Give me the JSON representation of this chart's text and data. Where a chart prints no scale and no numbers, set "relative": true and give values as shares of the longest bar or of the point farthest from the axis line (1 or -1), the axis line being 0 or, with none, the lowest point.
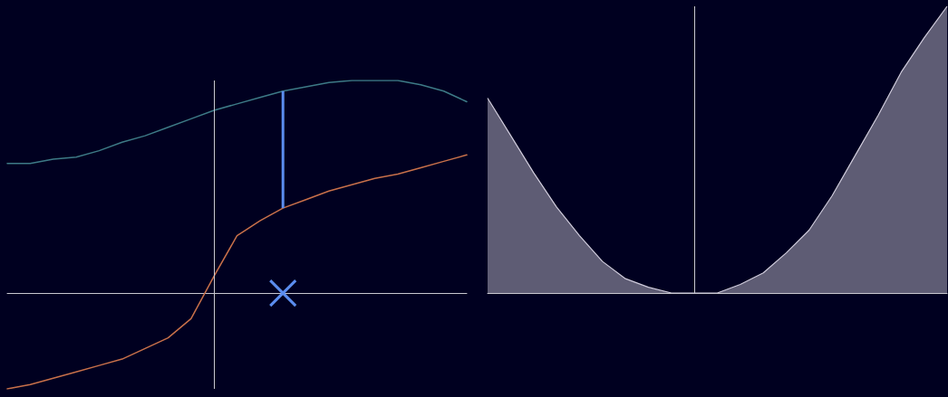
{
  "chart_data": [
    {
      "type": "line",
      "relative": true,
      "grid": false,
      "tick_labels": false,
      "marker": "none",
      "line_style": "solid",
      "categories": [
        null,
        null,
        null,
        null,
        null,
        null,
        null,
        null,
        null,
        null,
        null,
        null,
        null,
        null,
        null,
        null,
        null,
        null,
        null,
        null,
        null
      ],
      "series": [
        {
          "color": "#3d7a86",
          "values": [
            0.61,
            0.61,
            0.63,
            0.64,
            0.67,
            0.71,
            0.74,
            0.78,
            0.82,
            0.86,
            0.89,
            0.92,
            0.95,
            0.97,
            0.99,
            1.0,
            1.0,
            1.0,
            0.98,
            0.95,
            0.9
          ]
        },
        {
          "color": "#c8704a",
          "values": [
            -0.45,
            -0.43,
            -0.4,
            -0.37,
            -0.34,
            -0.31,
            -0.26,
            -0.21,
            -0.12,
            0.08,
            0.27,
            0.34,
            0.4,
            0.44,
            0.48,
            0.51,
            0.54,
            0.56,
            0.59,
            0.62,
            0.65
          ]
        }
      ]
    },
    {
      "type": "area",
      "relative": true,
      "grid": false,
      "tick_labels": false,
      "marker": "none",
      "categories": [
        null,
        null,
        null,
        null,
        null,
        null,
        null,
        null,
        null,
        null,
        null,
        null,
        null,
        null,
        null,
        null,
        null,
        null,
        null,
        null,
        null
      ],
      "series": [
        {
          "color": "#d0ccdc",
          "values": [
            0.68,
            0.55,
            0.42,
            0.3,
            0.2,
            0.11,
            0.05,
            0.02,
            0.0,
            0,
            0.0,
            0.03,
            0.07,
            0.14,
            0.22,
            0.34,
            0.48,
            0.62,
            0.77,
            0.89,
            1
          ]
        }
      ]
    }
  ]
}
